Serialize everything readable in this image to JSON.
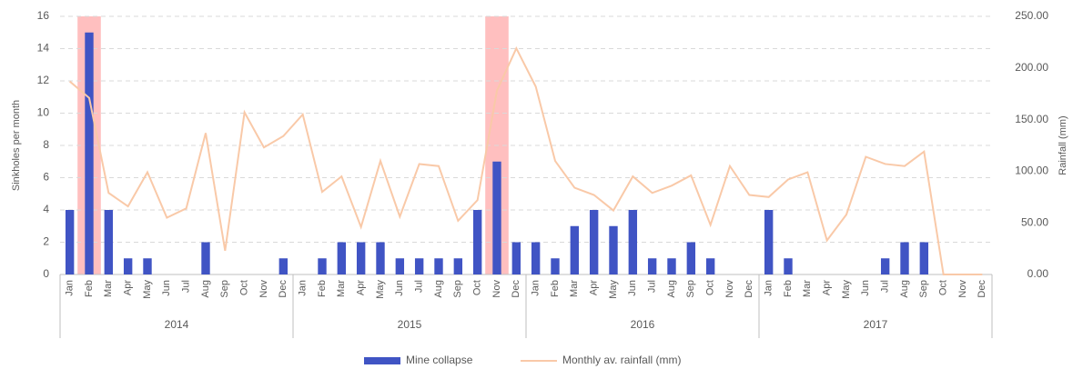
{
  "chart_data": {
    "type": "bar_line",
    "y_axis_label": "Sinkholes per month",
    "y2_axis_label": "Rainfall  (mm)",
    "categories": [
      "Jan",
      "Feb",
      "Mar",
      "Apr",
      "May",
      "Jun",
      "Jul",
      "Aug",
      "Sep",
      "Oct",
      "Nov",
      "Dec",
      "Jan",
      "Feb",
      "Mar",
      "Apr",
      "May",
      "Jun",
      "Jul",
      "Aug",
      "Sep",
      "Oct",
      "Nov",
      "Dec",
      "Jan",
      "Feb",
      "Mar",
      "Apr",
      "May",
      "Jun",
      "Jul",
      "Aug",
      "Sep",
      "Oct",
      "Nov",
      "Dec",
      "Jan",
      "Feb",
      "Mar",
      "Apr",
      "May",
      "Jun",
      "Jul",
      "Aug",
      "Sep",
      "Oct",
      "Nov",
      "Dec"
    ],
    "years": [
      "2014",
      "2015",
      "2016",
      "2017"
    ],
    "series": [
      {
        "name": "Mine collapse",
        "type": "bar",
        "color": "#4054c4",
        "values": [
          4,
          15,
          4,
          1,
          1,
          0,
          0,
          2,
          0,
          0,
          0,
          1,
          0,
          1,
          2,
          2,
          2,
          1,
          1,
          1,
          1,
          4,
          7,
          2,
          2,
          1,
          3,
          4,
          3,
          4,
          1,
          1,
          2,
          1,
          0,
          0,
          4,
          1,
          0,
          0,
          0,
          0,
          1,
          2,
          2,
          0,
          0,
          0
        ]
      },
      {
        "name": "Monthly av. rainfall (mm)",
        "type": "line",
        "axis": "y2",
        "color": "#f9c9a8",
        "values": [
          187,
          171,
          79,
          66,
          99,
          55,
          64,
          137,
          23,
          157,
          123,
          134,
          155,
          80,
          95,
          46,
          110,
          56,
          107,
          105,
          52,
          72,
          178,
          219,
          182,
          110,
          84,
          77,
          62,
          95,
          79,
          86,
          96,
          48,
          105,
          77,
          75,
          92,
          99,
          33,
          58,
          114,
          107,
          105,
          119,
          0,
          0,
          0
        ]
      }
    ],
    "highlight": [
      1,
      22
    ],
    "highlight_color": "#ffaaaa",
    "ylim": [
      0,
      16
    ],
    "yticks": [
      0,
      2,
      4,
      6,
      8,
      10,
      12,
      14,
      16
    ],
    "y2lim": [
      0,
      250
    ],
    "y2ticks": [
      {
        "value": 0,
        "label": "0.00"
      },
      {
        "value": 50,
        "label": "50.00"
      },
      {
        "value": 100,
        "label": "100.00"
      },
      {
        "value": 150,
        "label": "150.00"
      },
      {
        "value": 200,
        "label": "200.00"
      },
      {
        "value": 250,
        "label": "250.00"
      }
    ],
    "grid": true
  }
}
